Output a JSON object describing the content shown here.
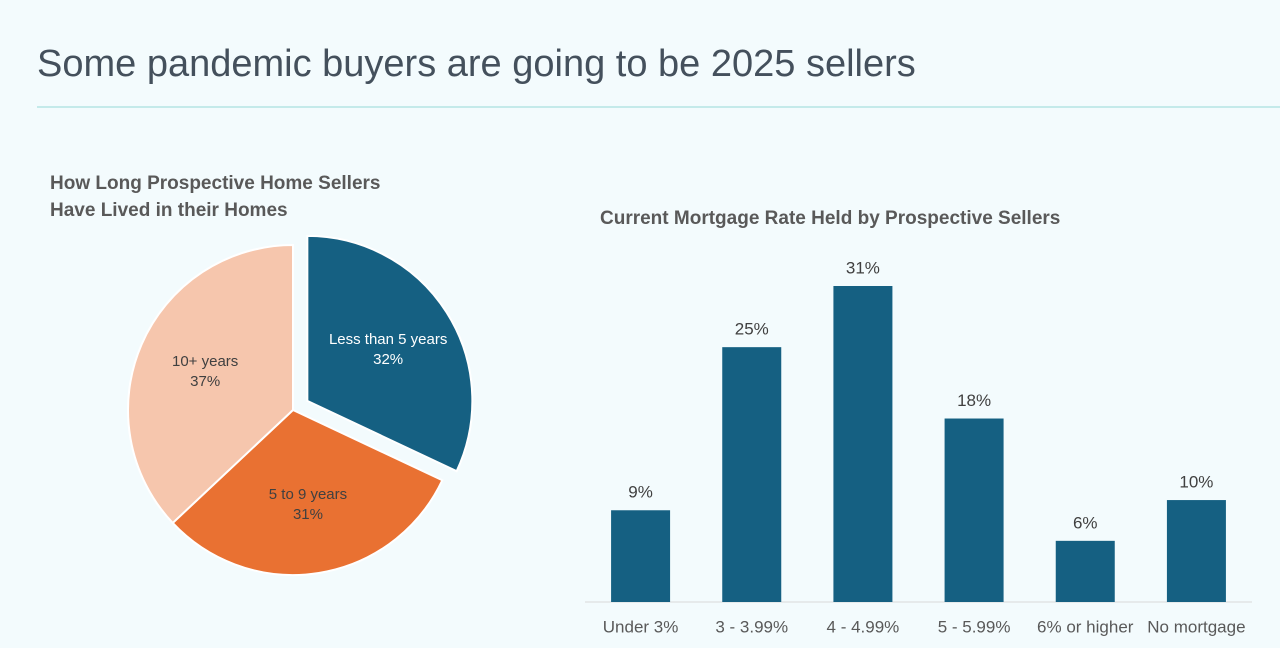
{
  "title": "Some pandemic buyers are going to be 2025 sellers",
  "chart_data": [
    {
      "type": "pie",
      "title": "How Long Prospective Home Sellers Have Lived in their Homes",
      "categories": [
        "Less than 5 years",
        "5 to 9 years",
        "10+ years"
      ],
      "values": [
        32,
        31,
        37
      ],
      "value_labels": [
        "32%",
        "31%",
        "37%"
      ],
      "colors": [
        "#156082",
        "#e97132",
        "#f6c6ad"
      ],
      "exploded": [
        true,
        false,
        false
      ]
    },
    {
      "type": "bar",
      "title": "Current Mortgage Rate Held by Prospective Sellers",
      "categories": [
        "Under 3%",
        "3 - 3.99%",
        "4 - 4.99%",
        "5 - 5.99%",
        "6% or higher",
        "No mortgage"
      ],
      "values": [
        9,
        25,
        31,
        18,
        6,
        10
      ],
      "value_labels": [
        "9%",
        "25%",
        "31%",
        "18%",
        "6%",
        "10%"
      ],
      "color": "#156082"
    }
  ]
}
